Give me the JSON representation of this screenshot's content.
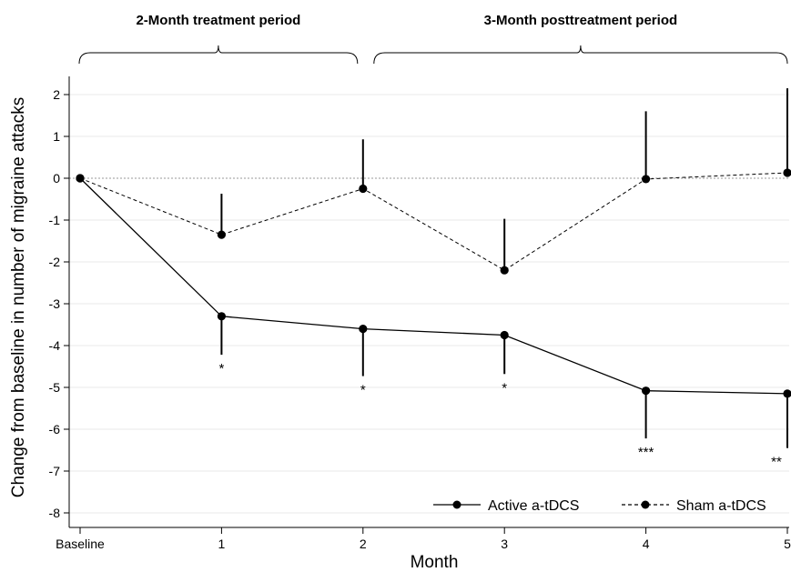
{
  "chart_data": {
    "type": "line",
    "periods": [
      {
        "label": "2-Month treatment period",
        "from": 0,
        "to": 2
      },
      {
        "label": "3-Month posttreatment period",
        "from": 2,
        "to": 5
      }
    ],
    "categories": [
      "Baseline",
      "1",
      "2",
      "3",
      "4",
      "5"
    ],
    "x": [
      0,
      1,
      2,
      3,
      4,
      5
    ],
    "xlabel": "Month",
    "ylabel": "Change from baseline in number of migraine attacks",
    "ylim": [
      -8.5,
      2.5
    ],
    "yticks": [
      2,
      1,
      0,
      -1,
      -2,
      -3,
      -4,
      -5,
      -6,
      -7,
      -8
    ],
    "ytick_labels": [
      "2",
      "1",
      "0",
      "-1",
      "-2",
      "-3",
      "-4",
      "-5",
      "-6",
      "-7",
      "-8"
    ],
    "reference_line": 0,
    "grid": true,
    "legend_position": "bottom-right",
    "series": [
      {
        "name": "Active a-tDCS",
        "line_style": "solid",
        "values": [
          0,
          -3.3,
          -3.6,
          -3.75,
          -5.08,
          -5.15
        ],
        "error_lower": [
          null,
          -4.22,
          -4.73,
          -4.68,
          -6.22,
          -6.45
        ],
        "significance": [
          "",
          "*",
          "*",
          "*",
          "***",
          "**"
        ]
      },
      {
        "name": "Sham a-tDCS",
        "line_style": "dashed",
        "values": [
          0,
          -1.35,
          -0.25,
          -2.2,
          -0.02,
          0.13
        ],
        "error_upper": [
          null,
          -0.37,
          0.93,
          -0.97,
          1.6,
          2.15
        ]
      }
    ]
  }
}
